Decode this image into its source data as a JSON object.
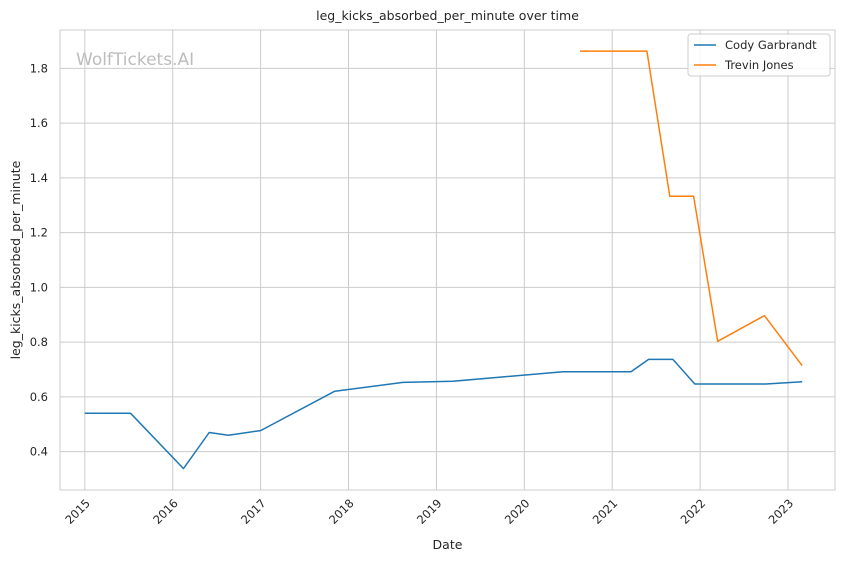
{
  "chart_data": {
    "type": "line",
    "title": "leg_kicks_absorbed_per_minute over time",
    "xlabel": "Date",
    "ylabel": "leg_kicks_absorbed_per_minute",
    "watermark": "WolfTickets.AI",
    "xlim": [
      "2014-09-20",
      "2023-07-15"
    ],
    "ylim": [
      0.26,
      1.94
    ],
    "x_ticks": [
      "2015",
      "2016",
      "2017",
      "2018",
      "2019",
      "2020",
      "2021",
      "2022",
      "2023"
    ],
    "y_ticks": [
      "0.4",
      "0.6",
      "0.8",
      "1.0",
      "1.2",
      "1.4",
      "1.6",
      "1.8"
    ],
    "grid": true,
    "legend_position": "top-right",
    "series": [
      {
        "name": "Cody Garbrandt",
        "color": "#1f77b4",
        "points": [
          {
            "x": "2015-01-01",
            "y": 0.54
          },
          {
            "x": "2015-07-10",
            "y": 0.54
          },
          {
            "x": "2016-02-15",
            "y": 0.338
          },
          {
            "x": "2016-06-01",
            "y": 0.47
          },
          {
            "x": "2016-08-20",
            "y": 0.46
          },
          {
            "x": "2017-01-01",
            "y": 0.477
          },
          {
            "x": "2017-11-05",
            "y": 0.621
          },
          {
            "x": "2018-08-15",
            "y": 0.653
          },
          {
            "x": "2019-03-10",
            "y": 0.657
          },
          {
            "x": "2020-06-10",
            "y": 0.692
          },
          {
            "x": "2021-03-20",
            "y": 0.692
          },
          {
            "x": "2021-06-01",
            "y": 0.737
          },
          {
            "x": "2021-09-10",
            "y": 0.737
          },
          {
            "x": "2021-12-10",
            "y": 0.647
          },
          {
            "x": "2022-10-01",
            "y": 0.647
          },
          {
            "x": "2023-03-01",
            "y": 0.655
          }
        ]
      },
      {
        "name": "Trevin Jones",
        "color": "#ff7f0e",
        "points": [
          {
            "x": "2020-08-20",
            "y": 1.863
          },
          {
            "x": "2021-05-25",
            "y": 1.863
          },
          {
            "x": "2021-08-28",
            "y": 1.333
          },
          {
            "x": "2021-12-05",
            "y": 1.333
          },
          {
            "x": "2022-03-15",
            "y": 0.803
          },
          {
            "x": "2022-09-25",
            "y": 0.897
          },
          {
            "x": "2023-03-01",
            "y": 0.714
          }
        ]
      }
    ]
  }
}
